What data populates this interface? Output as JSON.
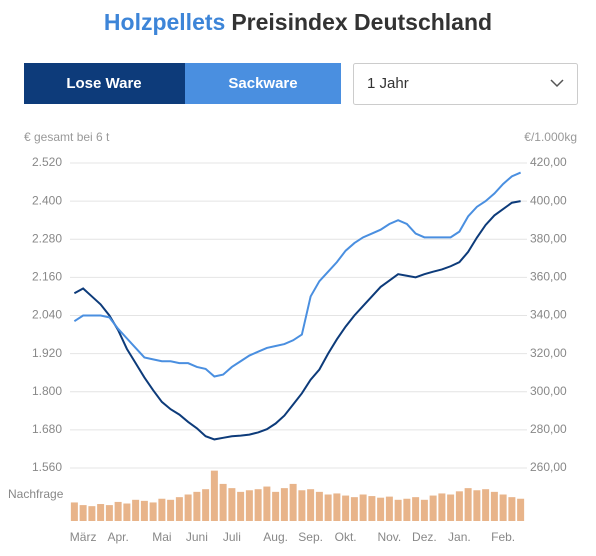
{
  "header": {
    "title_highlight": "Holzpellets",
    "title_rest": "Preisindex Deutschland"
  },
  "controls": {
    "dropdown": "1 Jahr"
  },
  "chart_data": {
    "type": "line",
    "ylabel": "€ gesamt bei 6 t",
    "y2label": "€/1.000kg",
    "demand_label": "Nachfrage",
    "categories": [
      null,
      "März",
      null,
      null,
      null,
      "Apr.",
      null,
      null,
      null,
      null,
      "Mai",
      null,
      null,
      null,
      "Juni",
      null,
      null,
      null,
      "Juli",
      null,
      null,
      null,
      null,
      "Aug.",
      null,
      null,
      null,
      "Sep.",
      null,
      null,
      null,
      "Okt.",
      null,
      null,
      null,
      null,
      "Nov.",
      null,
      null,
      null,
      "Dez.",
      null,
      null,
      null,
      "Jan.",
      null,
      null,
      null,
      null,
      "Feb.",
      null,
      null
    ],
    "series": [
      {
        "name": "Lose Ware",
        "color": "#0d3b7a",
        "axis": "y",
        "values": [
          2110,
          2125,
          2100,
          2075,
          2040,
          1994,
          1935,
          1890,
          1845,
          1805,
          1768,
          1745,
          1728,
          1705,
          1685,
          1660,
          1650,
          1655,
          1660,
          1662,
          1665,
          1672,
          1682,
          1700,
          1725,
          1760,
          1795,
          1838,
          1870,
          1920,
          1965,
          2005,
          2040,
          2070,
          2100,
          2130,
          2150,
          2170,
          2165,
          2160,
          2170,
          2178,
          2185,
          2195,
          2208,
          2240,
          2285,
          2325,
          2355,
          2375,
          2395,
          2400
        ]
      },
      {
        "name": "Sackware",
        "color": "#4a8fe0",
        "axis": "y2",
        "values": [
          337,
          340,
          340,
          340,
          339,
          333,
          328,
          323,
          318,
          317,
          316,
          316,
          315,
          315,
          313,
          312,
          308,
          309,
          313,
          316,
          319,
          321,
          323,
          324,
          325,
          327,
          330,
          350,
          358,
          363,
          368,
          374,
          378,
          381,
          383,
          385,
          388,
          390,
          388,
          383,
          381,
          381,
          381,
          381,
          384,
          392,
          397,
          400,
          404,
          409,
          413,
          415
        ]
      }
    ],
    "demand": {
      "color": "#e8b48a",
      "values": [
        35,
        30,
        28,
        32,
        30,
        36,
        33,
        40,
        38,
        35,
        42,
        40,
        45,
        50,
        55,
        60,
        95,
        70,
        62,
        55,
        58,
        60,
        65,
        55,
        62,
        70,
        58,
        60,
        55,
        50,
        52,
        48,
        45,
        50,
        47,
        44,
        46,
        40,
        42,
        45,
        40,
        48,
        52,
        50,
        56,
        62,
        58,
        60,
        55,
        50,
        45,
        42
      ]
    },
    "y3lim": [
      0,
      100
    ],
    "ylim": [
      1560,
      2520
    ],
    "yticks": [
      {
        "value": 1560,
        "label": "1.560"
      },
      {
        "value": 1680,
        "label": "1.680"
      },
      {
        "value": 1800,
        "label": "1.800"
      },
      {
        "value": 1920,
        "label": "1.920"
      },
      {
        "value": 2040,
        "label": "2.040"
      },
      {
        "value": 2160,
        "label": "2.160"
      },
      {
        "value": 2280,
        "label": "2.280"
      },
      {
        "value": 2400,
        "label": "2.400"
      },
      {
        "value": 2520,
        "label": "2.520"
      }
    ],
    "y2lim": [
      260,
      420
    ],
    "y2ticks": [
      {
        "value": 260,
        "label": "260,00"
      },
      {
        "value": 280,
        "label": "280,00"
      },
      {
        "value": 300,
        "label": "300,00"
      },
      {
        "value": 320,
        "label": "320,00"
      },
      {
        "value": 340,
        "label": "340,00"
      },
      {
        "value": 360,
        "label": "360,00"
      },
      {
        "value": 380,
        "label": "380,00"
      },
      {
        "value": 400,
        "label": "400,00"
      },
      {
        "value": 420,
        "label": "420,00"
      }
    ],
    "grid": true
  }
}
